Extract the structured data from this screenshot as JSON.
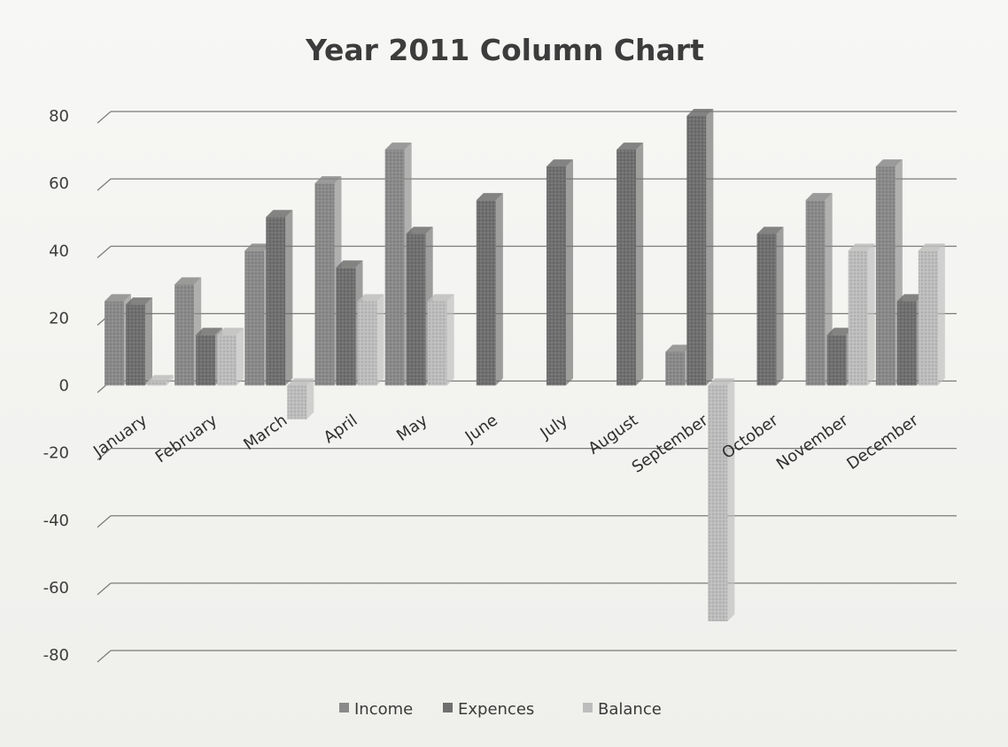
{
  "chart_data": {
    "type": "bar",
    "title": "Year 2011 Column Chart",
    "categories": [
      "January",
      "February",
      "March",
      "April",
      "May",
      "June",
      "July",
      "August",
      "September",
      "October",
      "November",
      "December"
    ],
    "series": [
      {
        "name": "Income",
        "values": [
          25,
          30,
          40,
          60,
          70,
          null,
          null,
          null,
          10,
          null,
          55,
          65
        ]
      },
      {
        "name": "Expences",
        "values": [
          24,
          15,
          50,
          35,
          45,
          55,
          65,
          70,
          80,
          45,
          15,
          25
        ]
      },
      {
        "name": "Balance",
        "values": [
          1,
          15,
          -10,
          25,
          25,
          null,
          null,
          null,
          -70,
          null,
          40,
          40
        ]
      }
    ],
    "ylim": [
      -80,
      80
    ],
    "yticks": [
      "80",
      "60",
      "40",
      "20",
      "0",
      "-20",
      "-40",
      "-60",
      "-80"
    ],
    "grid": true,
    "legend_position": "bottom",
    "colors": {
      "Income": "#8a8a8a",
      "Expences": "#6f6f6f",
      "Balance": "#bdbdbd"
    }
  }
}
